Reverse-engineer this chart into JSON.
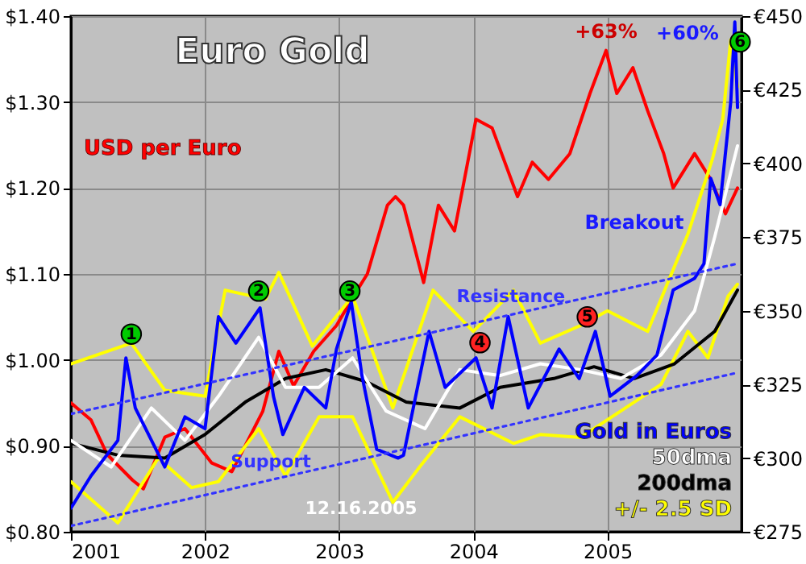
{
  "chart_data": {
    "type": "line",
    "title": "Euro Gold",
    "xlim": [
      2001,
      2006
    ],
    "xticks": [
      2001,
      2002,
      2003,
      2004,
      2005
    ],
    "ylim": [
      0.8,
      1.4
    ],
    "yticks": [
      {
        "value": 0.8,
        "label": "$0.80"
      },
      {
        "value": 0.9,
        "label": "$0.90"
      },
      {
        "value": 1.0,
        "label": "$1.00"
      },
      {
        "value": 1.1,
        "label": "$1.10"
      },
      {
        "value": 1.2,
        "label": "$1.20"
      },
      {
        "value": 1.3,
        "label": "$1.30"
      },
      {
        "value": 1.4,
        "label": "$1.40"
      }
    ],
    "y2lim": [
      275,
      450
    ],
    "y2ticks": [
      {
        "value": 275,
        "label": "€275"
      },
      {
        "value": 300,
        "label": "€300"
      },
      {
        "value": 325,
        "label": "€325"
      },
      {
        "value": 350,
        "label": "€350"
      },
      {
        "value": 375,
        "label": "€375"
      },
      {
        "value": 400,
        "label": "€400"
      },
      {
        "value": 425,
        "label": "€425"
      },
      {
        "value": 450,
        "label": "€450"
      }
    ],
    "grid": true,
    "series": [
      {
        "name": "USD per Euro",
        "color": "#ff0000",
        "x": [
          2001.0,
          2001.15,
          2001.27,
          2001.46,
          2001.54,
          2001.7,
          2001.85,
          2002.05,
          2002.2,
          2002.43,
          2002.55,
          2002.66,
          2002.81,
          2002.98,
          2003.13,
          2003.21,
          2003.36,
          2003.42,
          2003.48,
          2003.63,
          2003.74,
          2003.86,
          2004.02,
          2004.14,
          2004.33,
          2004.44,
          2004.56,
          2004.72,
          2004.87,
          2004.99,
          2005.07,
          2005.19,
          2005.3,
          2005.42,
          2005.49,
          2005.65,
          2005.77,
          2005.88,
          2005.97
        ],
        "values": [
          0.95,
          0.93,
          0.89,
          0.86,
          0.85,
          0.91,
          0.92,
          0.88,
          0.87,
          0.94,
          1.01,
          0.97,
          1.01,
          1.04,
          1.08,
          1.1,
          1.18,
          1.19,
          1.18,
          1.09,
          1.18,
          1.15,
          1.28,
          1.27,
          1.19,
          1.23,
          1.21,
          1.24,
          1.31,
          1.36,
          1.31,
          1.34,
          1.29,
          1.24,
          1.2,
          1.24,
          1.21,
          1.17,
          1.2
        ]
      },
      {
        "color": "#ffff00",
        "axis": "y2",
        "x": [
          2001.0,
          2001.45,
          2001.7,
          2002.0,
          2002.15,
          2002.45,
          2002.55,
          2002.8,
          2003.1,
          2003.4,
          2003.7,
          2004.0,
          2004.3,
          2004.5,
          2004.8,
          2005.0,
          2005.3,
          2005.6,
          2005.78,
          2005.86,
          2005.92,
          2005.97
        ],
        "values": [
          332,
          339,
          323,
          321,
          357,
          354,
          363,
          338,
          355,
          317,
          357,
          343,
          357,
          339,
          345,
          350,
          343,
          376,
          401,
          415,
          442,
          426
        ]
      },
      {
        "name": "+/- 2.5 SD",
        "color": "#ffff00",
        "axis": "y2",
        "x": [
          2001.0,
          2001.35,
          2001.65,
          2001.9,
          2002.1,
          2002.4,
          2002.6,
          2002.85,
          2003.1,
          2003.4,
          2003.6,
          2003.9,
          2004.3,
          2004.5,
          2004.8,
          2005.1,
          2005.4,
          2005.6,
          2005.75,
          2005.9,
          2005.97
        ],
        "values": [
          292,
          278,
          300,
          290,
          292,
          310,
          294,
          314,
          314,
          285,
          297,
          314,
          305,
          308,
          307,
          316,
          325,
          343,
          334,
          355,
          359
        ]
      },
      {
        "name": "200dma",
        "color": "#000000",
        "axis": "y2",
        "x": [
          2001.0,
          2001.35,
          2001.7,
          2002.0,
          2002.3,
          2002.6,
          2002.9,
          2003.2,
          2003.5,
          2003.9,
          2004.2,
          2004.6,
          2004.9,
          2005.2,
          2005.5,
          2005.8,
          2005.97
        ],
        "values": [
          305,
          301,
          300,
          308,
          319,
          327,
          330,
          326,
          319,
          317,
          324,
          327,
          331,
          327,
          332,
          343,
          357
        ]
      },
      {
        "name": "50dma",
        "color": "#ffffff",
        "axis": "y2",
        "x": [
          2001.0,
          2001.3,
          2001.6,
          2001.85,
          2002.1,
          2002.4,
          2002.6,
          2002.85,
          2003.1,
          2003.35,
          2003.64,
          2003.9,
          2004.2,
          2004.5,
          2004.8,
          2005.1,
          2005.4,
          2005.65,
          2005.8,
          2005.97
        ],
        "values": [
          306,
          297,
          317,
          306,
          321,
          341,
          324,
          324,
          334,
          316,
          310,
          330,
          328,
          332,
          330,
          327,
          335,
          350,
          375,
          406
        ]
      },
      {
        "name": "Gold in Euros",
        "color": "#0000ff",
        "axis": "y2",
        "x": [
          2001.0,
          2001.15,
          2001.35,
          2001.41,
          2001.48,
          2001.7,
          2001.85,
          2002.0,
          2002.1,
          2002.23,
          2002.41,
          2002.51,
          2002.58,
          2002.74,
          2002.9,
          2002.98,
          2003.09,
          2003.17,
          2003.28,
          2003.44,
          2003.48,
          2003.67,
          2003.79,
          2004.02,
          2004.14,
          2004.26,
          2004.41,
          2004.64,
          2004.79,
          2004.91,
          2005.02,
          2005.22,
          2005.37,
          2005.49,
          2005.65,
          2005.72,
          2005.77,
          2005.84,
          2005.92,
          2005.95,
          2005.97
        ],
        "values": [
          283,
          294,
          306,
          334,
          317,
          297,
          314,
          310,
          348,
          339,
          351,
          321,
          308,
          324,
          317,
          337,
          353,
          328,
          303,
          300,
          301,
          343,
          324,
          334,
          317,
          348,
          317,
          337,
          327,
          343,
          321,
          328,
          335,
          357,
          361,
          366,
          395,
          386,
          421,
          448,
          419
        ]
      },
      {
        "name": "Resistance",
        "color": "#3333ff",
        "axis": "y2",
        "line_style": "dotted",
        "x": [
          2001.0,
          2005.97
        ],
        "values": [
          315,
          366
        ]
      },
      {
        "name": "Support",
        "color": "#3333ff",
        "axis": "y2",
        "line_style": "dotted",
        "x": [
          2001.0,
          2005.97
        ],
        "values": [
          277,
          329
        ]
      },
      {
        "type": "scatter",
        "marker": "circle",
        "x": [
          2001.45,
          2002.4,
          2003.08,
          2004.05,
          2004.85,
          2005.99
        ],
        "values": [
          1.03,
          1.08,
          1.08,
          1.02,
          1.05,
          1.37
        ],
        "colors": [
          "#00cc00",
          "#00cc00",
          "#00cc00",
          "#ff2222",
          "#ff2222",
          "#00cc00"
        ]
      }
    ],
    "annotations": [
      "12.16.2005",
      {
        "text": "1",
        "x": 2001.45,
        "y": 1.03
      },
      {
        "text": "2",
        "x": 2002.4,
        "y": 1.08
      },
      {
        "text": "3",
        "x": 2003.08,
        "y": 1.08
      },
      {
        "text": "4",
        "x": 2004.05,
        "y": 1.02
      },
      {
        "text": "5",
        "x": 2004.85,
        "y": 1.05
      },
      {
        "text": "6",
        "x": 2005.99,
        "y": 1.37
      },
      {
        "text": "+63%",
        "x": 2004.99,
        "y": 1.363
      },
      {
        "text": "+60%",
        "x": 2005.95,
        "y": 1.38
      },
      {
        "text": "Breakout",
        "x": 2005.69,
        "y": 1.16
      }
    ]
  }
}
